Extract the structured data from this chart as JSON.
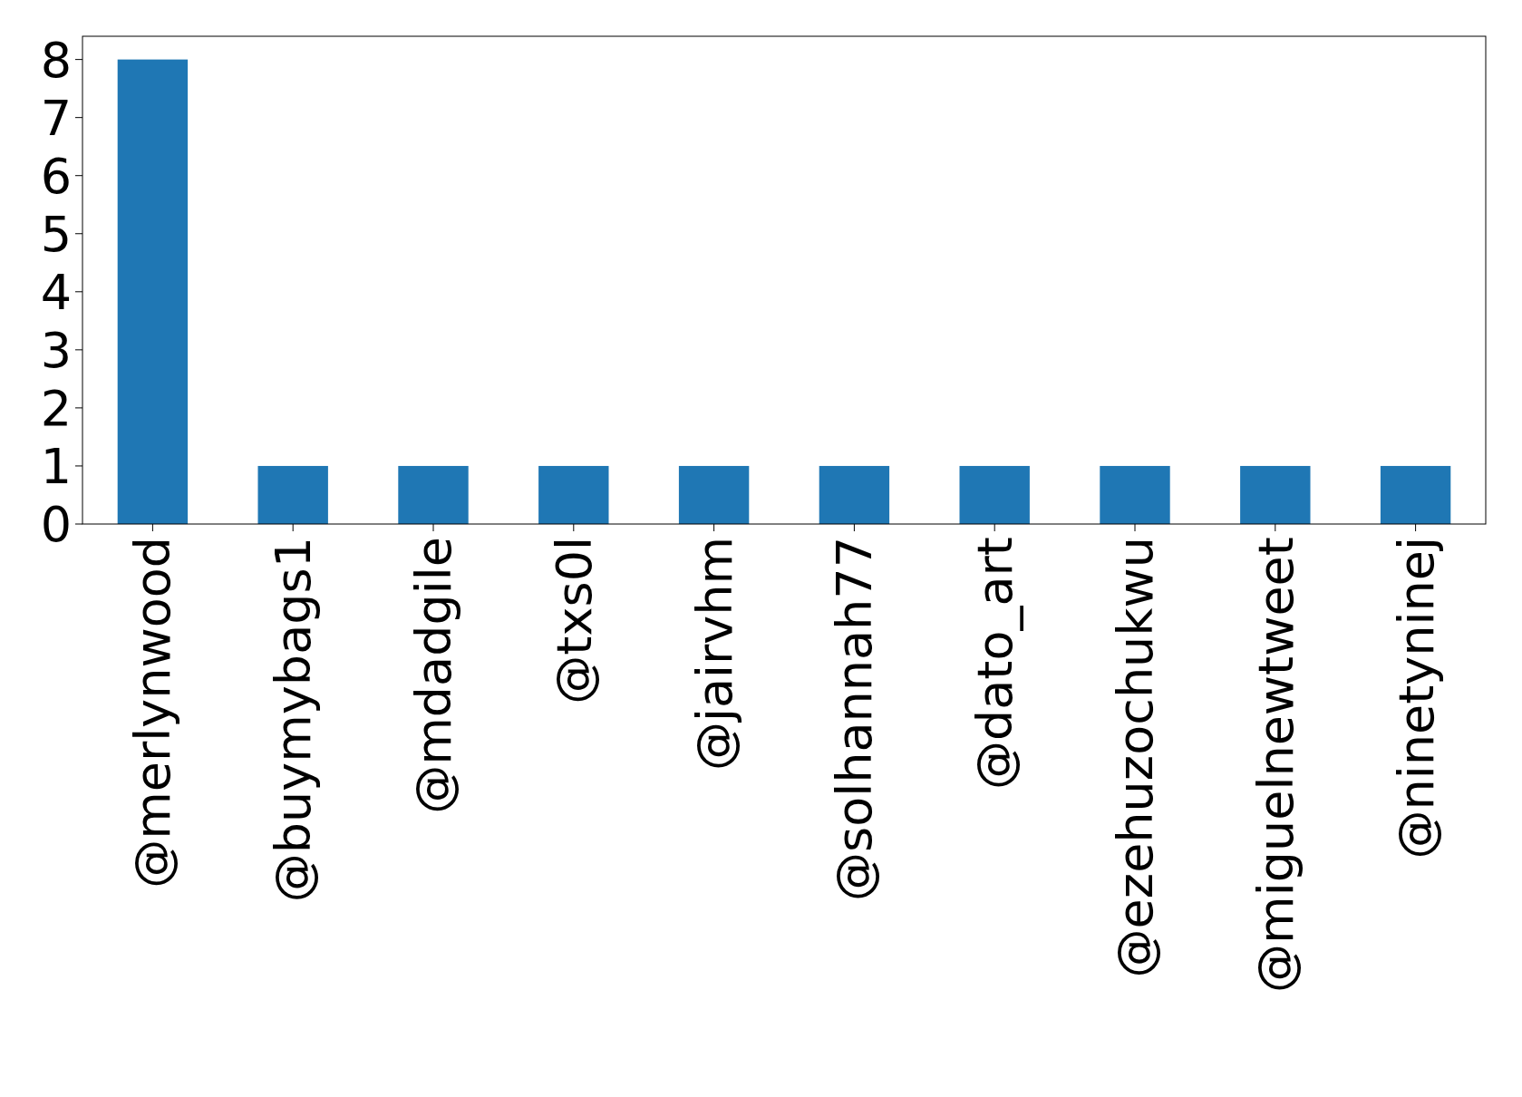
{
  "chart_data": {
    "type": "bar",
    "categories": [
      "@merlynwood",
      "@buymybags1",
      "@mdadgile",
      "@txs0l",
      "@jairvhm",
      "@solhannah77",
      "@dato_art",
      "@ezehuzochukwu",
      "@miguelnewtweet",
      "@ninetyninej"
    ],
    "values": [
      8,
      1,
      1,
      1,
      1,
      1,
      1,
      1,
      1,
      1
    ],
    "color": "#1f77b4",
    "ylim": [
      0,
      8.4
    ],
    "yticks": [
      0,
      1,
      2,
      3,
      4,
      5,
      6,
      7,
      8
    ]
  }
}
